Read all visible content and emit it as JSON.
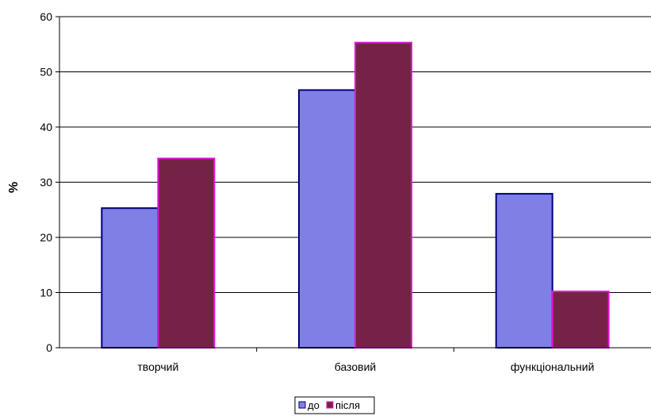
{
  "chart_data": {
    "type": "bar",
    "categories": [
      "творчий",
      "базовий",
      "функціональний"
    ],
    "series": [
      {
        "name": "до",
        "values": [
          25.3,
          46.7,
          27.9
        ],
        "color": "#7F7FE5",
        "stroke": "#00007A"
      },
      {
        "name": "після",
        "values": [
          34.3,
          55.3,
          10.2
        ],
        "color": "#762246",
        "stroke": "#E015D8"
      }
    ],
    "title": "",
    "xlabel": "",
    "ylabel": "%",
    "ylim": [
      0,
      60
    ],
    "yticks": [
      0,
      10,
      20,
      30,
      40,
      50,
      60
    ],
    "grid": true,
    "legend_position": "bottom"
  }
}
